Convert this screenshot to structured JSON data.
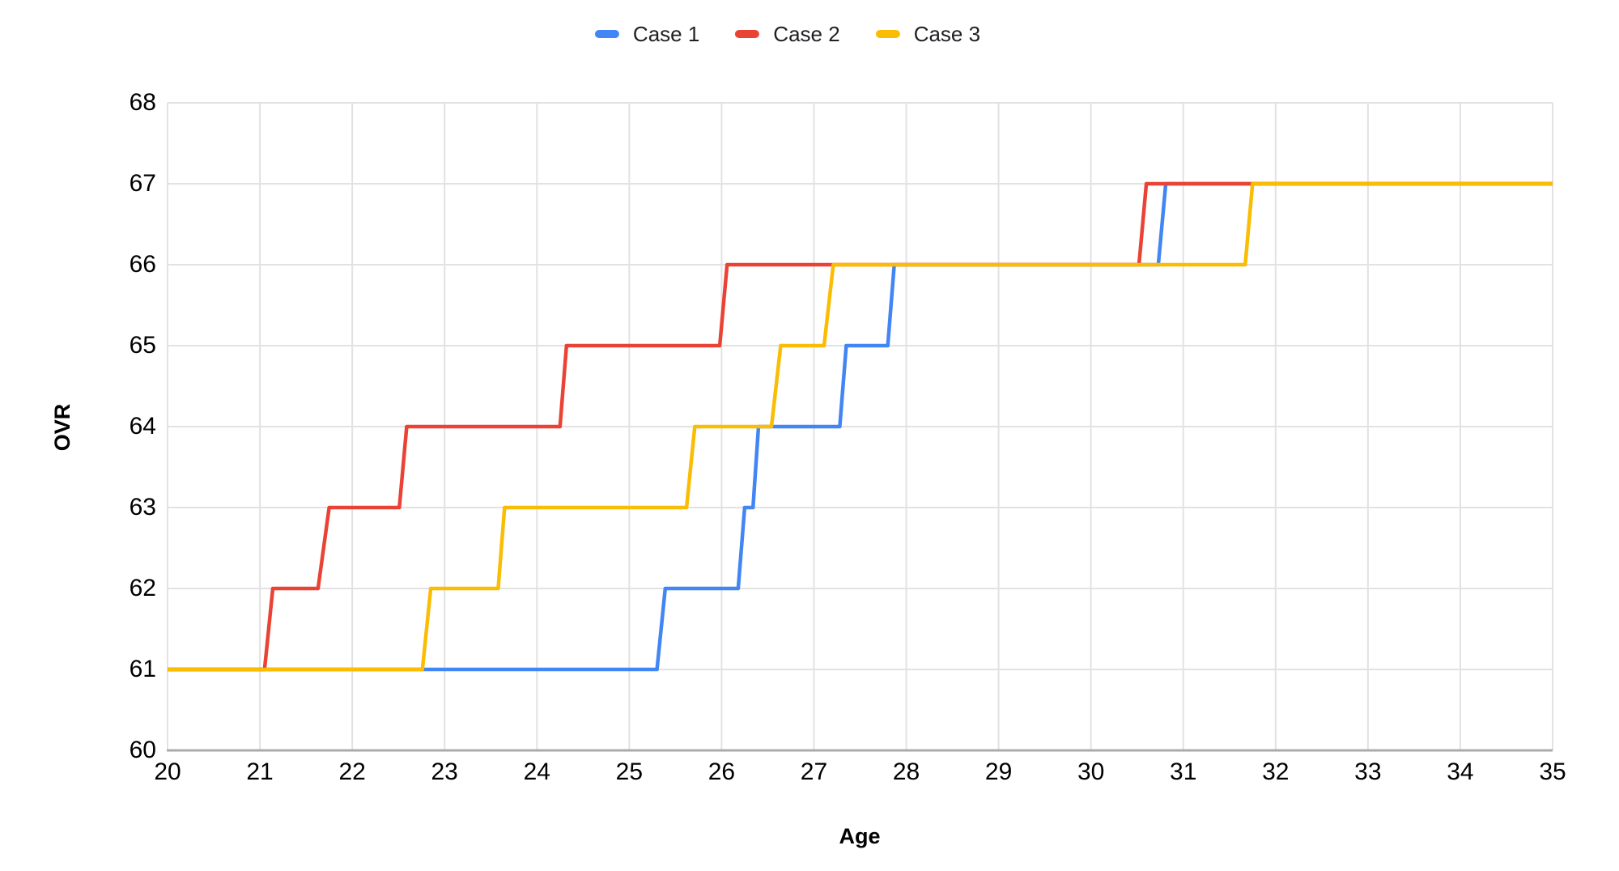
{
  "page": {
    "background": "#ffffff"
  },
  "chart_data": {
    "type": "line",
    "step_like": true,
    "title": "",
    "xlabel": "Age",
    "ylabel": "OVR",
    "xlim": [
      20,
      35
    ],
    "ylim": [
      60,
      68
    ],
    "x_ticks": [
      20,
      21,
      22,
      23,
      24,
      25,
      26,
      27,
      28,
      29,
      30,
      31,
      32,
      33,
      34,
      35
    ],
    "y_ticks": [
      60,
      61,
      62,
      63,
      64,
      65,
      66,
      67,
      68
    ],
    "grid": true,
    "legend": {
      "position": "top-center",
      "entries": [
        "Case 1",
        "Case 2",
        "Case 3"
      ]
    },
    "series": [
      {
        "name": "Case 1",
        "color": "#4285F4",
        "points": [
          [
            20,
            61
          ],
          [
            25.3,
            61
          ],
          [
            25.39,
            62
          ],
          [
            26.18,
            62
          ],
          [
            26.25,
            63
          ],
          [
            26.34,
            63
          ],
          [
            26.4,
            64
          ],
          [
            27.28,
            64
          ],
          [
            27.35,
            65
          ],
          [
            27.8,
            65
          ],
          [
            27.87,
            66
          ],
          [
            30.73,
            66
          ],
          [
            30.81,
            67
          ],
          [
            35,
            67
          ]
        ]
      },
      {
        "name": "Case 2",
        "color": "#EA4335",
        "points": [
          [
            20,
            61
          ],
          [
            21.05,
            61
          ],
          [
            21.14,
            62
          ],
          [
            21.63,
            62
          ],
          [
            21.75,
            63
          ],
          [
            22.51,
            63
          ],
          [
            22.59,
            64
          ],
          [
            24.25,
            64
          ],
          [
            24.32,
            65
          ],
          [
            25.98,
            65
          ],
          [
            26.06,
            66
          ],
          [
            30.52,
            66
          ],
          [
            30.6,
            67
          ],
          [
            35,
            67
          ]
        ]
      },
      {
        "name": "Case 3",
        "color": "#FBBC04",
        "points": [
          [
            20,
            61
          ],
          [
            22.76,
            61
          ],
          [
            22.85,
            62
          ],
          [
            23.58,
            62
          ],
          [
            23.65,
            63
          ],
          [
            25.62,
            63
          ],
          [
            25.71,
            64
          ],
          [
            26.54,
            64
          ],
          [
            26.64,
            65
          ],
          [
            27.11,
            65
          ],
          [
            27.21,
            66
          ],
          [
            31.67,
            66
          ],
          [
            31.75,
            67
          ],
          [
            35,
            67
          ]
        ]
      }
    ],
    "colors": {
      "grid": "#E2E2E2",
      "baseline": "#ABABAB",
      "tick_text": "#000000",
      "legend_text": "#202124"
    }
  }
}
